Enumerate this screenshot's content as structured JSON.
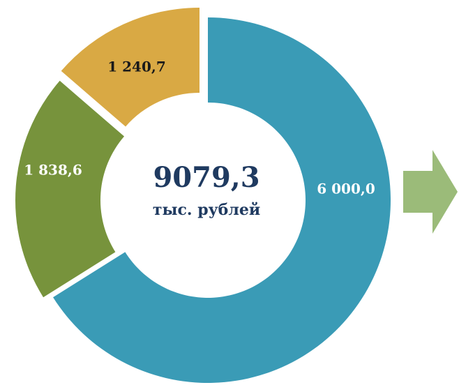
{
  "chart_data": {
    "type": "donut",
    "categories": [
      null,
      null,
      null
    ],
    "values": [
      6000.0,
      1838.6,
      1240.7
    ],
    "value_labels": [
      "6 000,0",
      "1 838,6",
      "1 240,7"
    ],
    "colors": [
      "#3a9bb6",
      "#77933c",
      "#d9a944"
    ],
    "center_title": "9079,3",
    "center_subtitle": "тыс. рублей"
  }
}
